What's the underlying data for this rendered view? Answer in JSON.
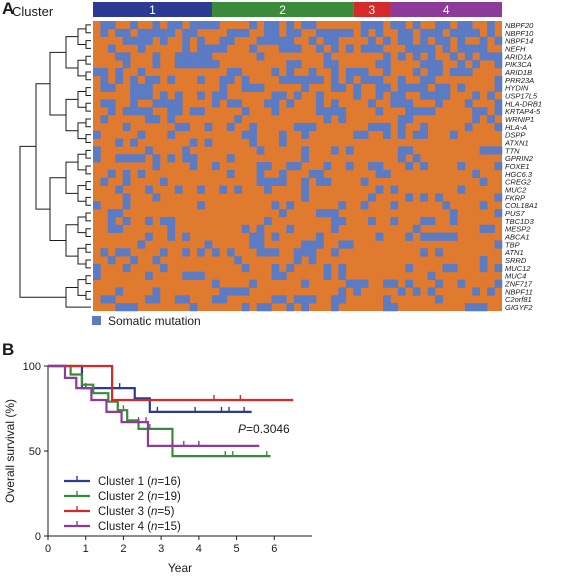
{
  "panel_a": {
    "label": "A",
    "cluster_title": "Cluster",
    "clusters": [
      {
        "label": "1",
        "color": "#2c3a93",
        "columns": 16
      },
      {
        "label": "2",
        "color": "#3a8a3a",
        "columns": 19
      },
      {
        "label": "3",
        "color": "#d42a2a",
        "columns": 5
      },
      {
        "label": "4",
        "color": "#8e3a9a",
        "columns": 15
      }
    ],
    "genes": [
      "NBPF20",
      "NBPF10",
      "NBPF14",
      "NEFH",
      "ARID1A",
      "PIK3CA",
      "ARID1B",
      "PRR23A",
      "HYDIN",
      "USP17L5",
      "HLA-DRB1",
      "KRTAP4-5",
      "WRNIP1",
      "HLA-A",
      "DSPP",
      "ATXN1",
      "TTN",
      "GPRIN2",
      "FOXE1",
      "HGC6.3",
      "CREG2",
      "MUC2",
      "FKRP",
      "COL18A1",
      "PUS7",
      "TBC1D3",
      "MESP2",
      "ABCA1",
      "TBP",
      "ATN1",
      "SRRD",
      "MUC12",
      "MUC4",
      "ZNF717",
      "NBPF11",
      "C2orf81",
      "GIGYF2"
    ],
    "legend_label": "Somatic mutation",
    "mutation_color": "#5b7bc4",
    "background_color": "#e07a2e"
  },
  "panel_b": {
    "label": "B",
    "p_value_prefix": "P",
    "p_value_text": "=0.3046"
  },
  "chart_data": {
    "type": "line",
    "subtype": "kaplan-meier step",
    "xlabel": "Year",
    "ylabel": "Overall survival (%)",
    "xlim": [
      0,
      7
    ],
    "ylim": [
      0,
      100
    ],
    "xticks": [
      0,
      1,
      2,
      3,
      4,
      5,
      6
    ],
    "yticks": [
      0,
      50,
      100
    ],
    "legend_position": "bottom-left",
    "series": [
      {
        "name": "Cluster 1",
        "n_label": "n",
        "n_value": "=16",
        "color": "#2c3a93",
        "x": [
          0,
          0.9,
          0.9,
          2.3,
          2.3,
          2.7,
          2.7,
          5.4
        ],
        "y": [
          100,
          100,
          87,
          87,
          81,
          81,
          73,
          73
        ],
        "censors": [
          [
            1.0,
            87
          ],
          [
            1.7,
            87
          ],
          [
            1.9,
            87
          ],
          [
            2.9,
            73
          ],
          [
            3.9,
            73
          ],
          [
            4.6,
            73
          ],
          [
            4.8,
            73
          ],
          [
            5.2,
            73
          ]
        ]
      },
      {
        "name": "Cluster 2",
        "n_label": "n",
        "n_value": "=19",
        "color": "#3a8a3a",
        "x": [
          0,
          0.6,
          0.6,
          0.9,
          0.9,
          1.2,
          1.2,
          1.6,
          1.6,
          1.85,
          1.85,
          2.1,
          2.1,
          2.4,
          2.4,
          3.3,
          3.3,
          5.9
        ],
        "y": [
          100,
          100,
          95,
          95,
          89,
          89,
          84,
          84,
          79,
          79,
          74,
          74,
          68,
          68,
          63,
          63,
          47,
          47
        ],
        "censors": [
          [
            2.0,
            74
          ],
          [
            2.7,
            63
          ],
          [
            4.7,
            47
          ],
          [
            4.9,
            47
          ],
          [
            5.8,
            47
          ]
        ]
      },
      {
        "name": "Cluster 3",
        "n_label": "n",
        "n_value": "=5",
        "color": "#d42a2a",
        "x": [
          0,
          1.7,
          1.7,
          6.5
        ],
        "y": [
          100,
          100,
          80,
          80
        ],
        "censors": [
          [
            4.4,
            80
          ],
          [
            5.1,
            80
          ]
        ]
      },
      {
        "name": "Cluster 4",
        "n_label": "n",
        "n_value": "=15",
        "color": "#8e3a9a",
        "x": [
          0,
          0.45,
          0.45,
          0.75,
          0.75,
          1.15,
          1.15,
          1.55,
          1.55,
          1.95,
          1.95,
          2.65,
          2.65,
          5.6
        ],
        "y": [
          100,
          100,
          93,
          93,
          87,
          87,
          80,
          80,
          73,
          73,
          67,
          67,
          53,
          53
        ],
        "censors": [
          [
            2.4,
            67
          ],
          [
            2.6,
            67
          ],
          [
            3.3,
            53
          ],
          [
            3.6,
            53
          ],
          [
            4.0,
            53
          ]
        ]
      }
    ]
  }
}
